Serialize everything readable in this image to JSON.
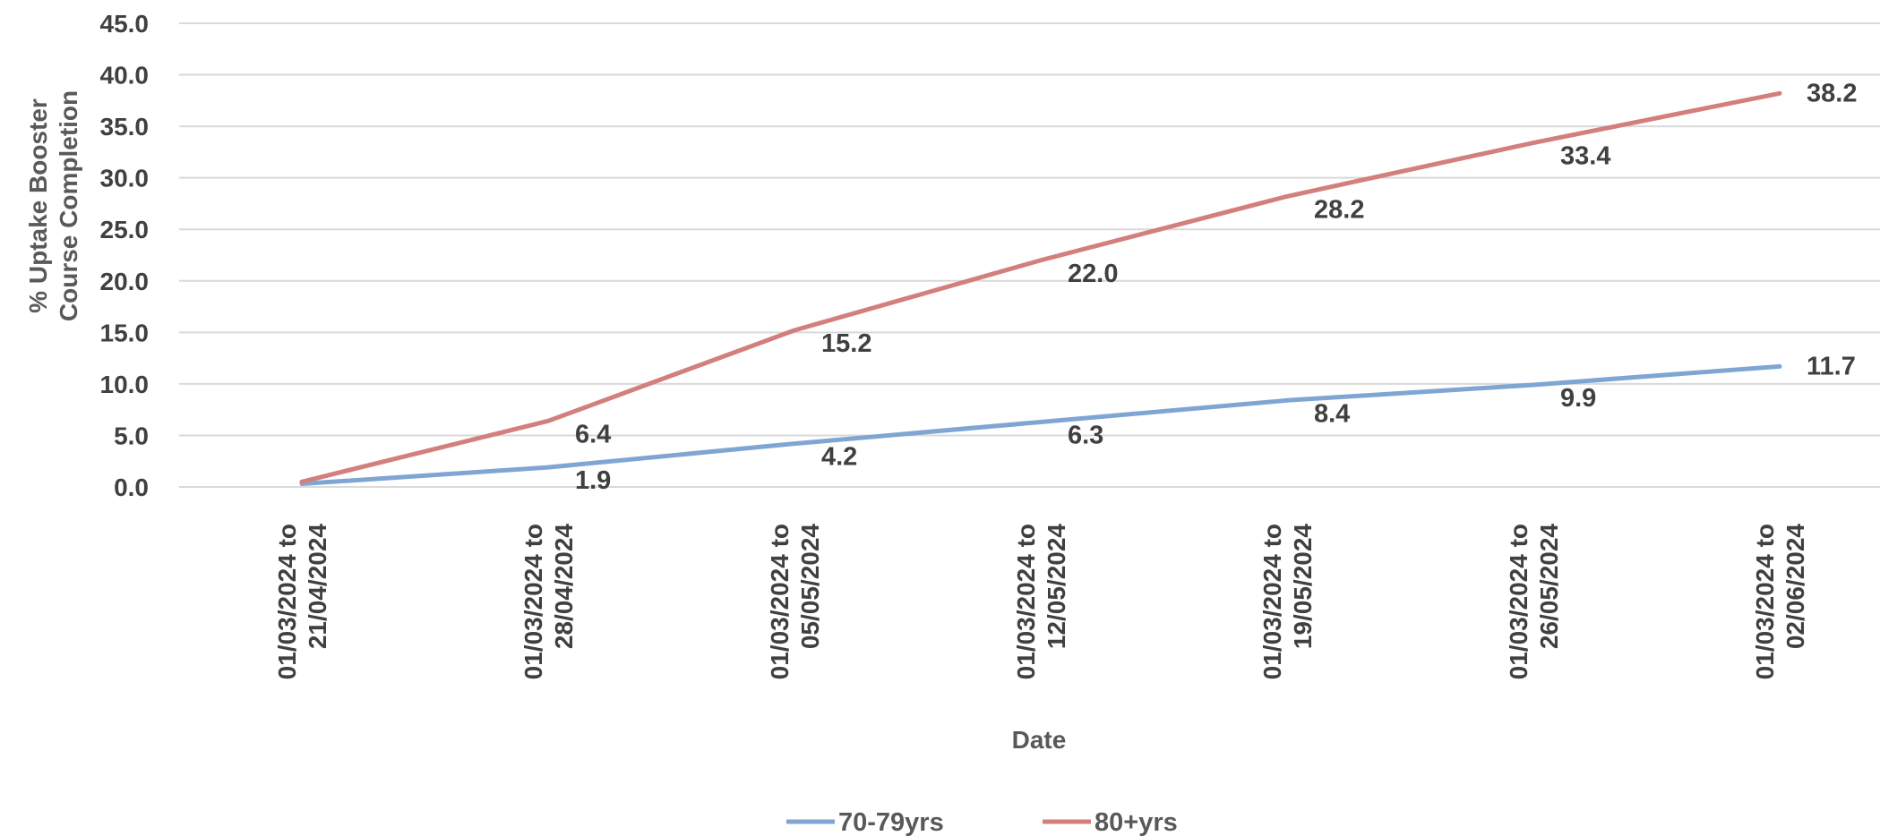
{
  "chart_data": {
    "type": "line",
    "categories": [
      [
        "01/03/2024 to",
        "21/04/2024"
      ],
      [
        "01/03/2024 to",
        "28/04/2024"
      ],
      [
        "01/03/2024 to",
        "05/05/2024"
      ],
      [
        "01/03/2024 to",
        "12/05/2024"
      ],
      [
        "01/03/2024 to",
        "19/05/2024"
      ],
      [
        "01/03/2024 to",
        "26/05/2024"
      ],
      [
        "01/03/2024 to",
        "02/06/2024"
      ]
    ],
    "series": [
      {
        "name": "70-79yrs",
        "color": "#7fa6d3",
        "values": [
          0.3,
          1.9,
          4.2,
          6.3,
          8.4,
          9.9,
          11.7
        ],
        "labels": [
          "",
          "1.9",
          "4.2",
          "6.3",
          "8.4",
          "9.9",
          "11.7"
        ]
      },
      {
        "name": "80+yrs",
        "color": "#d27f7d",
        "values": [
          0.5,
          6.4,
          15.2,
          22.0,
          28.2,
          33.4,
          38.2
        ],
        "labels": [
          "",
          "6.4",
          "15.2",
          "22.0",
          "28.2",
          "33.4",
          "38.2"
        ]
      }
    ],
    "xlabel": "Date",
    "ylabel": [
      "% Uptake Booster",
      "Course Completion"
    ],
    "ylim": [
      0,
      45
    ],
    "yticks": [
      "0.0",
      "5.0",
      "10.0",
      "15.0",
      "20.0",
      "25.0",
      "30.0",
      "35.0",
      "40.0",
      "45.0"
    ],
    "grid": true,
    "legend_position": "bottom"
  }
}
